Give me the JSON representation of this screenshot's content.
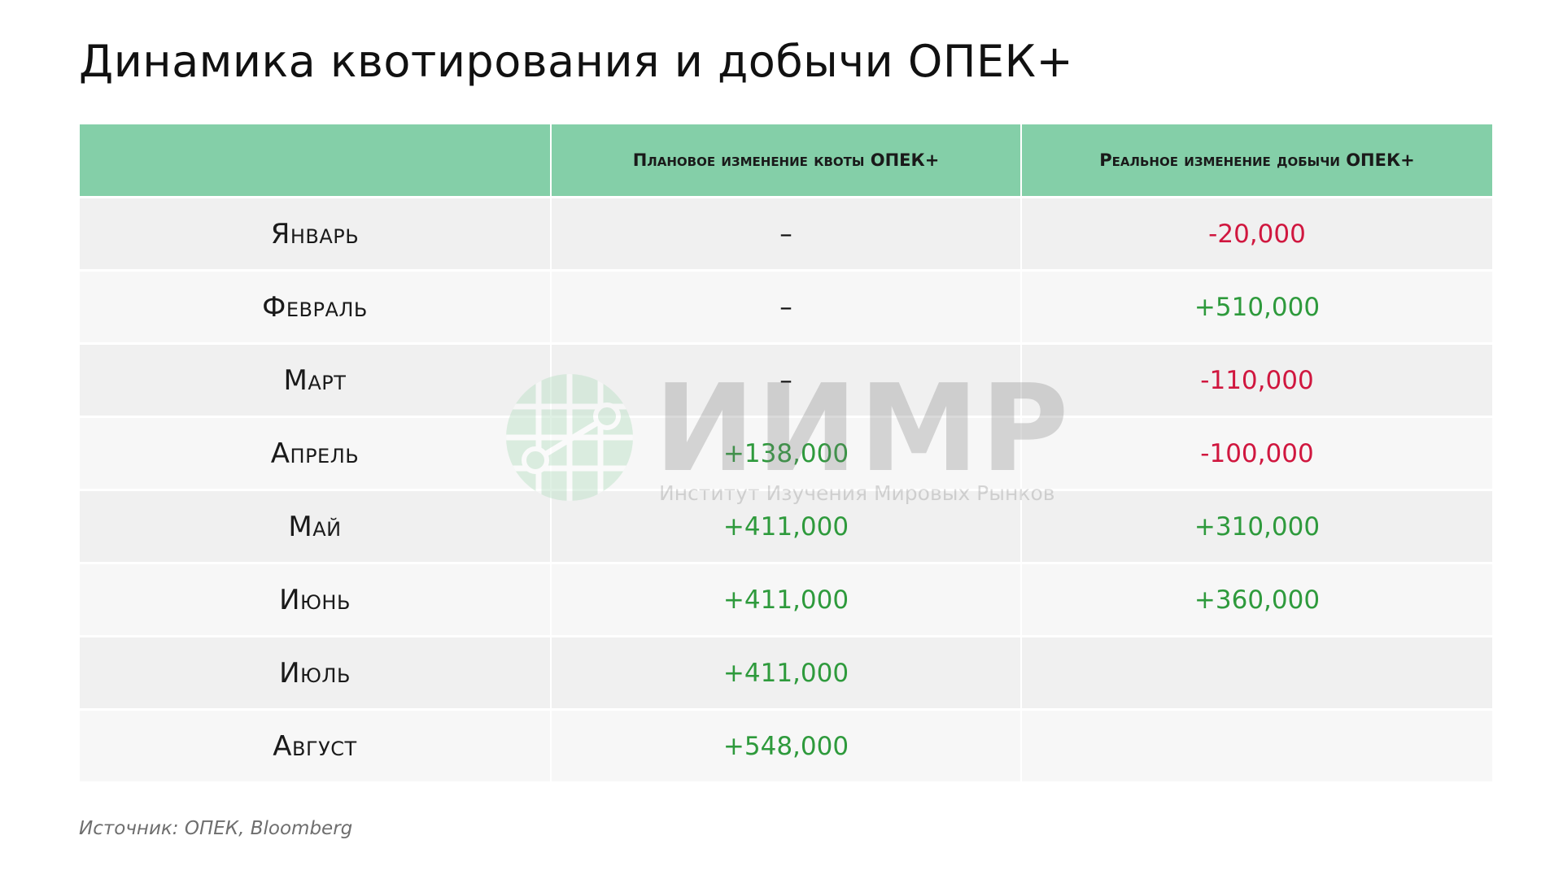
{
  "title": "Динамика квотирования и добычи ОПЕК+",
  "source": "Источник: ОПЕК, Bloomberg",
  "watermark": {
    "name": "ИИМР",
    "subtitle": "Институт Изучения Мировых Рынков",
    "icon": "globe-network-icon"
  },
  "colors": {
    "header_bg": "#84cfa8",
    "positive": "#2e9a3c",
    "negative": "#d0173f",
    "row_odd": "#f0f0f0",
    "row_even": "#f7f7f7"
  },
  "chart_data": {
    "type": "table",
    "columns": [
      "",
      "Плановое изменение квоты ОПЕК+",
      "Реальное  изменение добычи ОПЕК+"
    ],
    "rows": [
      {
        "month": "Январь",
        "planned": "–",
        "actual": "-20,000"
      },
      {
        "month": "Февраль",
        "planned": "–",
        "actual": "+510,000"
      },
      {
        "month": "Март",
        "planned": "–",
        "actual": "-110,000"
      },
      {
        "month": "Апрель",
        "planned": "+138,000",
        "actual": "-100,000"
      },
      {
        "month": "Май",
        "planned": "+411,000",
        "actual": "+310,000"
      },
      {
        "month": "Июнь",
        "planned": "+411,000",
        "actual": "+360,000"
      },
      {
        "month": "Июль",
        "planned": "+411,000",
        "actual": ""
      },
      {
        "month": "Август",
        "planned": "+548,000",
        "actual": ""
      }
    ]
  }
}
